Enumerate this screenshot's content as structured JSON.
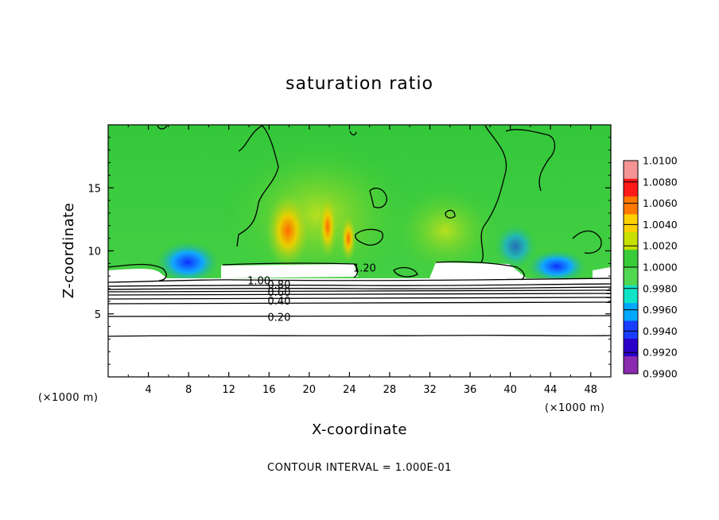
{
  "chart_data": {
    "type": "heatmap",
    "title": "saturation ratio",
    "xlabel": "X-coordinate",
    "ylabel": "Z-coordinate",
    "x_units": "(×1000 m)",
    "x_units_right": "(×1000 m)",
    "x_ticks": [
      4,
      8,
      12,
      16,
      20,
      24,
      28,
      32,
      36,
      40,
      44,
      48
    ],
    "y_ticks": [
      5,
      10,
      15
    ],
    "xlim": [
      0,
      50
    ],
    "ylim": [
      0,
      20
    ],
    "colorbar": {
      "ticks": [
        "1.0100",
        "1.0080",
        "1.0060",
        "1.0040",
        "1.0020",
        "1.0000",
        "0.9980",
        "0.9960",
        "0.9940",
        "0.9920",
        "0.9900"
      ],
      "min": 0.99,
      "max": 1.01,
      "colors": [
        "#8a2bb0",
        "#2a00c8",
        "#1a3cff",
        "#00a8ff",
        "#10e4c8",
        "#50d850",
        "#38cc38",
        "#c8e000",
        "#ffd000",
        "#ff7800",
        "#ff1a1a",
        "#f49494"
      ]
    },
    "contours": [
      {
        "label": "1.20",
        "z": 8.6,
        "x": 25.5
      },
      {
        "label": "1.00",
        "z": 7.6,
        "x": 15.0
      },
      {
        "label": "0.80",
        "z": 7.3,
        "x": 17.0
      },
      {
        "label": "0.60",
        "z": 6.7,
        "x": 17.0
      },
      {
        "label": "0.40",
        "z": 6.0,
        "x": 17.0
      },
      {
        "label": "0.20",
        "z": 4.7,
        "x": 17.0
      }
    ],
    "contour_interval_text": "CONTOUR INTERVAL = 1.000E-01",
    "grid": false
  }
}
